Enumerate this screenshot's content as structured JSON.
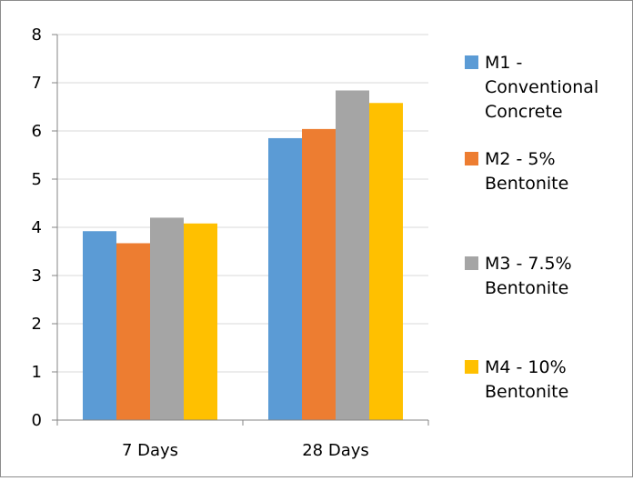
{
  "chart_data": {
    "type": "bar",
    "title": "",
    "xlabel": "",
    "ylabel": "",
    "categories": [
      "7 Days",
      "28 Days"
    ],
    "ylim": [
      0,
      8
    ],
    "yticks": [
      0,
      1,
      2,
      3,
      4,
      5,
      6,
      7,
      8
    ],
    "grid": true,
    "legend_position": "right",
    "series": [
      {
        "name": "M1 - Conventional Concrete",
        "legend_lines": [
          "M1 -",
          "Conventional",
          "Concrete"
        ],
        "color": "#5B9BD5",
        "values": [
          3.92,
          5.85
        ]
      },
      {
        "name": "M2 - 5% Bentonite",
        "legend_lines": [
          "M2 - 5%",
          "Bentonite"
        ],
        "color": "#ED7D31",
        "values": [
          3.67,
          6.04
        ]
      },
      {
        "name": "M3 - 7.5% Bentonite",
        "legend_lines": [
          "M3 - 7.5%",
          "Bentonite"
        ],
        "color": "#A5A5A5",
        "values": [
          4.2,
          6.84
        ]
      },
      {
        "name": "M4 - 10% Bentonite",
        "legend_lines": [
          "M4 - 10%",
          "Bentonite"
        ],
        "color": "#FFC000",
        "values": [
          4.08,
          6.58
        ]
      }
    ]
  }
}
